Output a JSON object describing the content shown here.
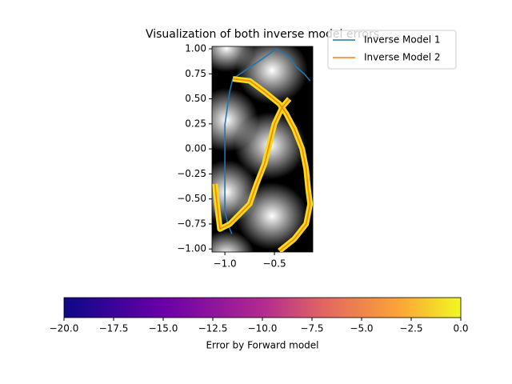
{
  "chart_data": {
    "type": "line",
    "title": "Visualization of both inverse model errors",
    "xlim": [
      -1.13,
      -0.113
    ],
    "ylim": [
      -1.03,
      1.024
    ],
    "xticks": [
      {
        "value": -1.0,
        "label": "−1.0"
      },
      {
        "value": -0.5,
        "label": "−0.5"
      }
    ],
    "yticks": [
      {
        "value": 1.0,
        "label": "1.00"
      },
      {
        "value": 0.75,
        "label": "0.75"
      },
      {
        "value": 0.5,
        "label": "0.50"
      },
      {
        "value": 0.25,
        "label": "0.25"
      },
      {
        "value": 0.0,
        "label": "0.00"
      },
      {
        "value": -0.25,
        "label": "−0.25"
      },
      {
        "value": -0.5,
        "label": "−0.50"
      },
      {
        "value": -0.75,
        "label": "−0.75"
      },
      {
        "value": -1.0,
        "label": "−1.00"
      }
    ],
    "legend": "upper right",
    "series": [
      {
        "name": "Inverse Model 1",
        "color": "#1f77b4",
        "x": [
          -0.93,
          -0.97,
          -1.0,
          -1.0,
          -1.0,
          -1.0,
          -1.0,
          -0.97,
          -0.95,
          -0.92,
          -0.62,
          -0.48,
          -0.35,
          -0.28,
          -0.2,
          -0.14
        ],
        "y": [
          -0.85,
          -0.75,
          -0.62,
          -0.43,
          -0.21,
          0.02,
          0.24,
          0.45,
          0.58,
          0.7,
          0.9,
          1.0,
          0.92,
          0.82,
          0.75,
          0.68
        ]
      },
      {
        "name": "Inverse Model 2",
        "color": "#ff7f0e",
        "error_color": "#f5dc1e",
        "x": [
          -0.92,
          -0.75,
          -0.6,
          -0.45,
          -0.38,
          -0.3,
          -0.22,
          -0.18,
          -0.16,
          -0.14,
          -0.18,
          -0.3,
          -0.45,
          null,
          -1.1,
          -1.08,
          -1.05,
          -0.95,
          -0.85,
          -0.75,
          -0.68,
          -0.6,
          -0.55,
          -0.5,
          -0.42,
          -0.35
        ],
        "y": [
          0.7,
          0.68,
          0.57,
          0.45,
          0.35,
          0.2,
          0.0,
          -0.2,
          -0.4,
          -0.55,
          -0.75,
          -0.9,
          -1.02,
          null,
          -0.35,
          -0.55,
          -0.8,
          -0.75,
          -0.65,
          -0.55,
          -0.35,
          -0.15,
          0.05,
          0.25,
          0.42,
          0.5
        ]
      }
    ],
    "colorbar": {
      "label": "Error by Forward model",
      "lim": [
        -20,
        0
      ],
      "ticks": [
        {
          "value": -20,
          "label": "−20.0"
        },
        {
          "value": -17.5,
          "label": "−17.5"
        },
        {
          "value": -15,
          "label": "−15.0"
        },
        {
          "value": -12.5,
          "label": "−12.5"
        },
        {
          "value": -10,
          "label": "−10.0"
        },
        {
          "value": -7.5,
          "label": "−7.5"
        },
        {
          "value": -5,
          "label": "−5.0"
        },
        {
          "value": -2.5,
          "label": "−2.5"
        },
        {
          "value": 0,
          "label": "0.0"
        }
      ]
    }
  }
}
